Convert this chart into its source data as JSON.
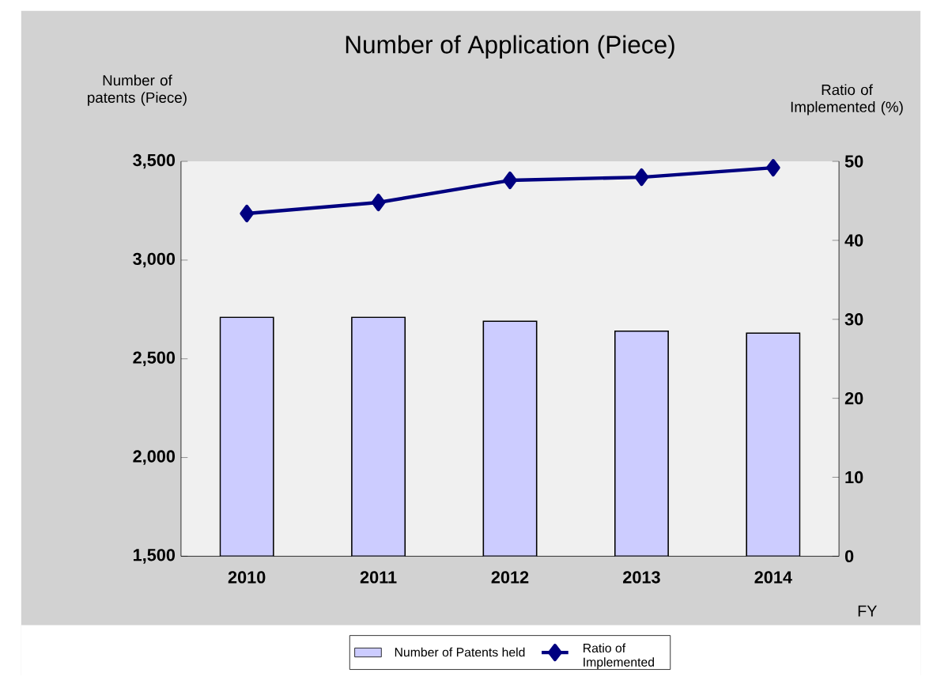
{
  "chart_data": {
    "type": "bar",
    "title": "Number of Application (Piece)",
    "xlabel": "FY",
    "ylabel": "Number of patents (Piece)",
    "y2label": "Ratio of Implemented (%)",
    "categories": [
      "2010",
      "2011",
      "2012",
      "2013",
      "2014"
    ],
    "series": [
      {
        "name": "Number of Patents held",
        "color": "#ccccff",
        "values": [
          2710,
          2710,
          2690,
          2640,
          2630
        ]
      },
      {
        "name": "Ratio of Implemented",
        "type": "line",
        "axis": "y2",
        "color": "#000080",
        "marker": "diamond",
        "values": [
          43.4,
          44.8,
          47.6,
          48.0,
          49.2
        ]
      }
    ],
    "ylim": [
      1500,
      3500
    ],
    "yticks": [
      {
        "value": 1500,
        "label": "1,500"
      },
      {
        "value": 2000,
        "label": "2,000"
      },
      {
        "value": 2500,
        "label": "2,500"
      },
      {
        "value": 3000,
        "label": "3,000"
      },
      {
        "value": 3500,
        "label": "3,500"
      }
    ],
    "y2lim": [
      0,
      50
    ],
    "y2ticks": [
      0,
      10,
      20,
      30,
      40,
      50
    ],
    "legend": "bottom",
    "grid": false
  }
}
